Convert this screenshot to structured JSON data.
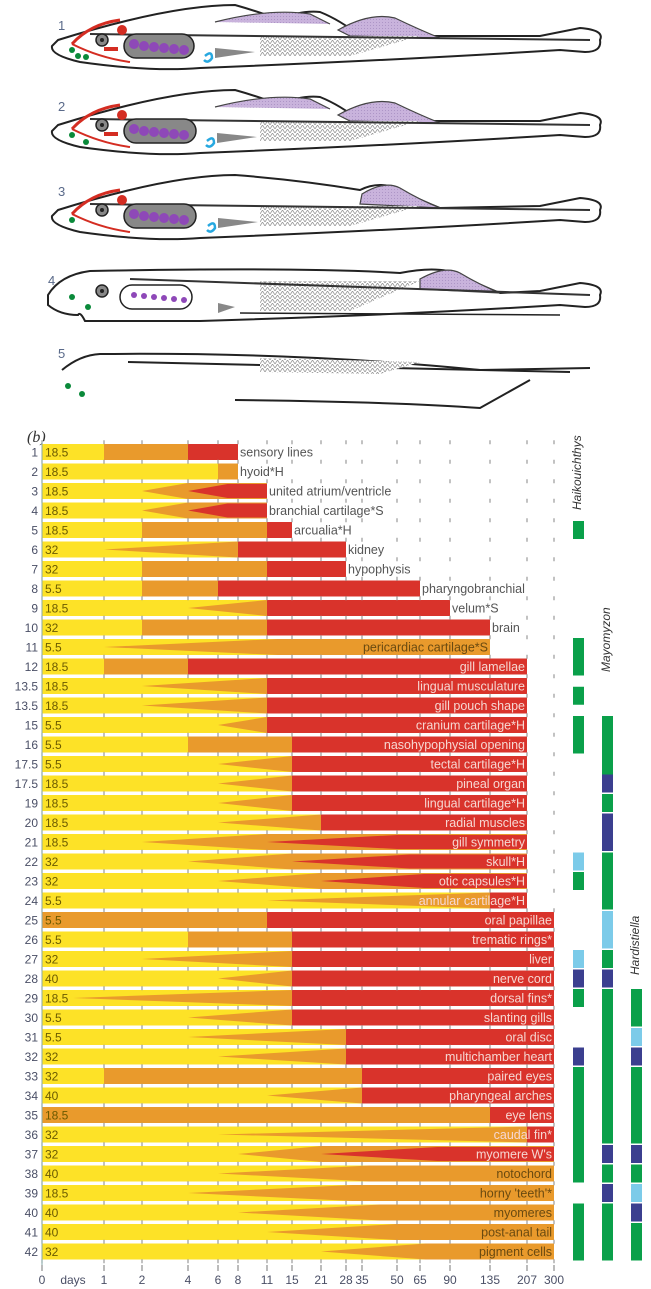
{
  "fish_panel": {
    "stage_labels": [
      "1",
      "2",
      "3",
      "4",
      "5"
    ]
  },
  "chart_data": {
    "type": "table",
    "panel_label": "(b)",
    "x_axis": {
      "unit_label": "days",
      "ticks": [
        "0",
        "1",
        "2",
        "4",
        "6",
        "8",
        "11",
        "15",
        "21",
        "28",
        "35",
        "50",
        "65",
        "90",
        "135",
        "207",
        "300"
      ]
    },
    "colors": {
      "phase1": "#fde227",
      "phase2": "#e99a2c",
      "phase3": "#d9332b",
      "present": "#0aa04a",
      "dark": "#3b3f8f",
      "light": "#7ccbe9"
    },
    "rows": [
      {
        "rank": "1",
        "value": "18.5",
        "label": "sensory lines",
        "phase2": 1,
        "phase3": 4,
        "end": 8,
        "taper2": false,
        "taper3": false
      },
      {
        "rank": "2",
        "value": "18.5",
        "label": "hyoid*H",
        "phase2": 6,
        "phase3": null,
        "end": 8,
        "taper2": false,
        "taper3": false
      },
      {
        "rank": "3",
        "value": "18.5",
        "label": "united atrium/ventricle",
        "phase2": 2,
        "phase3": 4,
        "end": 11,
        "taper2": true,
        "taper3": true
      },
      {
        "rank": "4",
        "value": "18.5",
        "label": "branchial cartilage*S",
        "phase2": 2,
        "phase3": 4,
        "end": 11,
        "taper2": true,
        "taper3": true
      },
      {
        "rank": "5",
        "value": "18.5",
        "label": "arcualia*H",
        "phase2": 2,
        "phase3": 11,
        "end": 15,
        "taper2": false,
        "taper3": false
      },
      {
        "rank": "6",
        "value": "32",
        "label": "kidney",
        "phase2": 1,
        "phase3": 8,
        "end": 28,
        "taper2": true,
        "taper3": false
      },
      {
        "rank": "7",
        "value": "32",
        "label": "hypophysis",
        "phase2": 2,
        "phase3": 11,
        "end": 28,
        "taper2": false,
        "taper3": false
      },
      {
        "rank": "8",
        "value": "5.5",
        "label": "pharyngobranchial",
        "phase2": 2,
        "phase3": 6,
        "end": 65,
        "taper2": false,
        "taper3": false
      },
      {
        "rank": "9",
        "value": "18.5",
        "label": "velum*S",
        "phase2": 4,
        "phase3": 11,
        "end": 90,
        "taper2": true,
        "taper3": false
      },
      {
        "rank": "10",
        "value": "32",
        "label": "brain",
        "phase2": 2,
        "phase3": 11,
        "end": 135,
        "taper2": false,
        "taper3": false
      },
      {
        "rank": "11",
        "value": "5.5",
        "label": "pericardiac cartilage*S",
        "phase2": 1,
        "phase3": null,
        "end": 135,
        "taper2": true,
        "taper3": false
      },
      {
        "rank": "12",
        "value": "18.5",
        "label": "gill lamellae",
        "phase2": 1,
        "phase3": 4,
        "end": 207,
        "taper2": false,
        "taper3": false
      },
      {
        "rank": "13.5",
        "value": "18.5",
        "label": "lingual musculature",
        "phase2": 2,
        "phase3": 11,
        "end": 207,
        "taper2": true,
        "taper3": false
      },
      {
        "rank": "13.5",
        "value": "18.5",
        "label": "gill pouch shape",
        "phase2": 2,
        "phase3": 11,
        "end": 207,
        "taper2": true,
        "taper3": false
      },
      {
        "rank": "15",
        "value": "5.5",
        "label": "cranium cartilage*H",
        "phase2": 6,
        "phase3": 11,
        "end": 207,
        "taper2": true,
        "taper3": false
      },
      {
        "rank": "16",
        "value": "5.5",
        "label": "nasohypophysial opening",
        "phase2": 4,
        "phase3": 15,
        "end": 207,
        "taper2": false,
        "taper3": false
      },
      {
        "rank": "17.5",
        "value": "5.5",
        "label": "tectal cartilage*H",
        "phase2": 6,
        "phase3": 15,
        "end": 207,
        "taper2": true,
        "taper3": false
      },
      {
        "rank": "17.5",
        "value": "18.5",
        "label": "pineal organ",
        "phase2": 6,
        "phase3": 15,
        "end": 207,
        "taper2": true,
        "taper3": false
      },
      {
        "rank": "19",
        "value": "18.5",
        "label": "lingual cartilage*H",
        "phase2": 6,
        "phase3": 15,
        "end": 207,
        "taper2": true,
        "taper3": false
      },
      {
        "rank": "20",
        "value": "18.5",
        "label": "radial muscles",
        "phase2": 6,
        "phase3": 21,
        "end": 207,
        "taper2": true,
        "taper3": false
      },
      {
        "rank": "21",
        "value": "18.5",
        "label": "gill symmetry",
        "phase2": 2,
        "phase3": 11,
        "end": 207,
        "taper2": true,
        "taper3": true
      },
      {
        "rank": "22",
        "value": "32",
        "label": "skull*H",
        "phase2": 4,
        "phase3": 15,
        "end": 207,
        "taper2": true,
        "taper3": true
      },
      {
        "rank": "23",
        "value": "32",
        "label": "otic capsules*H",
        "phase2": 6,
        "phase3": 21,
        "end": 207,
        "taper2": true,
        "taper3": true
      },
      {
        "rank": "24",
        "value": "5.5",
        "label": "annular cartilage*H",
        "phase2": 11,
        "phase3": 135,
        "end": 207,
        "taper2": true,
        "taper3": false
      },
      {
        "rank": "25",
        "value": "5.5",
        "label": "oral papillae",
        "phase2": 0,
        "phase3": 11,
        "end": 300,
        "taper2": false,
        "taper3": false
      },
      {
        "rank": "26",
        "value": "5.5",
        "label": "trematic rings*",
        "phase2": 4,
        "phase3": 15,
        "end": 300,
        "taper2": false,
        "taper3": false
      },
      {
        "rank": "27",
        "value": "32",
        "label": "liver",
        "phase2": 2,
        "phase3": 15,
        "end": 300,
        "taper2": true,
        "taper3": false
      },
      {
        "rank": "28",
        "value": "40",
        "label": "nerve cord",
        "phase2": 6,
        "phase3": 15,
        "end": 300,
        "taper2": true,
        "taper3": false
      },
      {
        "rank": "29",
        "value": "18.5",
        "label": "dorsal fins*",
        "phase2": 0.5,
        "phase3": 15,
        "end": 300,
        "taper2": true,
        "taper3": false
      },
      {
        "rank": "30",
        "value": "5.5",
        "label": "slanting gills",
        "phase2": 4,
        "phase3": 15,
        "end": 300,
        "taper2": true,
        "taper3": false
      },
      {
        "rank": "31",
        "value": "5.5",
        "label": "oral disc",
        "phase2": 4,
        "phase3": 28,
        "end": 300,
        "taper2": true,
        "taper3": false
      },
      {
        "rank": "32",
        "value": "32",
        "label": "multichamber heart",
        "phase2": 6,
        "phase3": 28,
        "end": 300,
        "taper2": true,
        "taper3": false
      },
      {
        "rank": "33",
        "value": "32",
        "label": "paired eyes",
        "phase2": 1,
        "phase3": 35,
        "end": 300,
        "taper2": false,
        "taper3": false
      },
      {
        "rank": "34",
        "value": "40",
        "label": "pharyngeal arches",
        "phase2": 11,
        "phase3": 35,
        "end": 300,
        "taper2": true,
        "taper3": false
      },
      {
        "rank": "35",
        "value": "18.5",
        "label": "eye lens",
        "phase2": 0,
        "phase3": 135,
        "end": 300,
        "taper2": false,
        "taper3": false
      },
      {
        "rank": "36",
        "value": "32",
        "label": "caudal fin*",
        "phase2": 6,
        "phase3": 207,
        "end": 300,
        "taper2": true,
        "taper3": false
      },
      {
        "rank": "37",
        "value": "32",
        "label": "myomere W's",
        "phase2": 8,
        "phase3": 21,
        "end": 300,
        "taper2": true,
        "taper3": true
      },
      {
        "rank": "38",
        "value": "40",
        "label": "notochord",
        "phase2": 6,
        "phase3": null,
        "end": 300,
        "taper2": true,
        "taper3": false
      },
      {
        "rank": "39",
        "value": "18.5",
        "label": "horny 'teeth'*",
        "phase2": 4,
        "phase3": null,
        "end": 300,
        "taper2": true,
        "taper3": false
      },
      {
        "rank": "40",
        "value": "40",
        "label": "myomeres",
        "phase2": 8,
        "phase3": null,
        "end": 300,
        "taper2": true,
        "taper3": false
      },
      {
        "rank": "41",
        "value": "40",
        "label": "post-anal tail",
        "phase2": 11,
        "phase3": null,
        "end": 300,
        "taper2": true,
        "taper3": false
      },
      {
        "rank": "42",
        "value": "32",
        "label": "pigment cells",
        "phase2": 21,
        "phase3": null,
        "end": 300,
        "taper2": true,
        "taper3": false
      }
    ],
    "species": [
      {
        "name": "Haikouichthys",
        "segments": [
          {
            "from": 5,
            "to": 5,
            "state": "present"
          },
          {
            "from": 11,
            "to": 12,
            "state": "present"
          },
          {
            "from": 13.5,
            "to": 13.5,
            "state": "present"
          },
          {
            "from": 15,
            "to": 16,
            "state": "present"
          },
          {
            "from": 22,
            "to": 22,
            "state": "light"
          },
          {
            "from": 23,
            "to": 23,
            "state": "present"
          },
          {
            "from": 27,
            "to": 27,
            "state": "light"
          },
          {
            "from": 28,
            "to": 28,
            "state": "dark"
          },
          {
            "from": 29,
            "to": 29,
            "state": "present"
          },
          {
            "from": 32,
            "to": 32,
            "state": "dark"
          },
          {
            "from": 33,
            "to": 38,
            "state": "present"
          },
          {
            "from": 40,
            "to": 42,
            "state": "present"
          }
        ]
      },
      {
        "name": "Mayomyzon",
        "segments": [
          {
            "from": 15,
            "to": 17.5,
            "state": "present"
          },
          {
            "from": 18,
            "to": 18,
            "state": "dark"
          },
          {
            "from": 19,
            "to": 19,
            "state": "present"
          },
          {
            "from": 20,
            "to": 21,
            "state": "dark"
          },
          {
            "from": 22,
            "to": 24,
            "state": "present"
          },
          {
            "from": 25,
            "to": 26,
            "state": "light"
          },
          {
            "from": 27,
            "to": 27,
            "state": "present"
          },
          {
            "from": 28,
            "to": 28,
            "state": "dark"
          },
          {
            "from": 29,
            "to": 36,
            "state": "present"
          },
          {
            "from": 37,
            "to": 37,
            "state": "dark"
          },
          {
            "from": 38,
            "to": 38,
            "state": "present"
          },
          {
            "from": 39,
            "to": 39,
            "state": "dark"
          },
          {
            "from": 40,
            "to": 42,
            "state": "present"
          }
        ]
      },
      {
        "name": "Hardistiella",
        "segments": [
          {
            "from": 29,
            "to": 30,
            "state": "present"
          },
          {
            "from": 31,
            "to": 31,
            "state": "light"
          },
          {
            "from": 32,
            "to": 32,
            "state": "dark"
          },
          {
            "from": 33,
            "to": 36,
            "state": "present"
          },
          {
            "from": 37,
            "to": 37,
            "state": "dark"
          },
          {
            "from": 38,
            "to": 38,
            "state": "present"
          },
          {
            "from": 39,
            "to": 39,
            "state": "light"
          },
          {
            "from": 40,
            "to": 40,
            "state": "dark"
          },
          {
            "from": 41,
            "to": 42,
            "state": "present"
          }
        ]
      }
    ]
  }
}
